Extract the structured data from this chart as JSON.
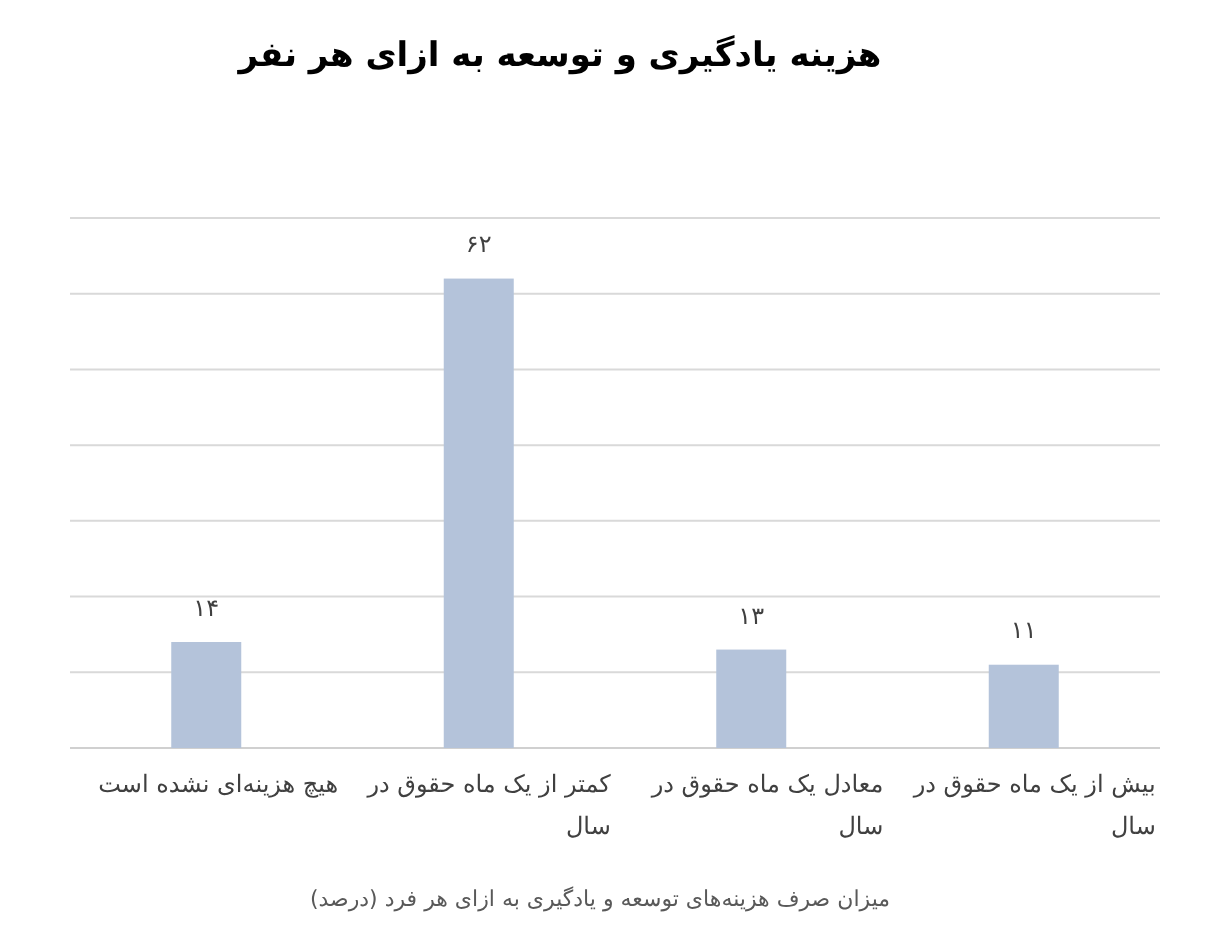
{
  "chart_data": {
    "type": "bar",
    "title": "هزینه یادگیری و توسعه به ازای هر نفر",
    "xlabel": "میزان صرف هزینه‌های توسعه و یادگیری به ازای هر فرد (درصد)",
    "categories": [
      "هیچ هزینه‌ای نشده است",
      "کمتر از یک ماه حقوق در سال",
      "معادل یک ماه حقوق در سال",
      "بیش از یک ماه حقوق در سال"
    ],
    "values": [
      14,
      62,
      13,
      11
    ],
    "value_labels": [
      "۱۴",
      "۶۲",
      "۱۳",
      "۱۱"
    ],
    "color": "#b4c3da",
    "ylim": [
      0,
      70
    ],
    "yticks": [
      {
        "value": 0,
        "label": null
      },
      {
        "value": 10,
        "label": null
      },
      {
        "value": 20,
        "label": null
      },
      {
        "value": 30,
        "label": null
      },
      {
        "value": 40,
        "label": null
      },
      {
        "value": 50,
        "label": null
      },
      {
        "value": 60,
        "label": null
      },
      {
        "value": 70,
        "label": null
      }
    ],
    "grid": "y",
    "tick_labels": "x"
  }
}
